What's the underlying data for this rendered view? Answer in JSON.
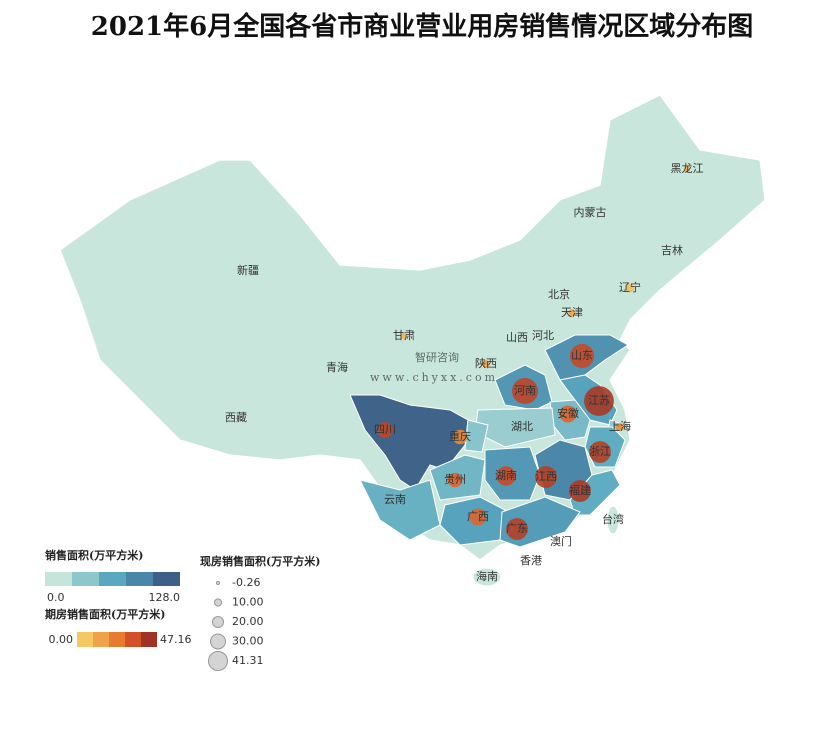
{
  "title": "2021年6月全国各省市商业营业用房销售情况区域分布图",
  "watermark": {
    "brand": "智研咨询",
    "url": "www.chyxx.com"
  },
  "regions": [
    {
      "label": "新疆"
    },
    {
      "label": "西藏"
    },
    {
      "label": "青海"
    },
    {
      "label": "甘肃",
      "current": 3,
      "forward": 6
    },
    {
      "label": "内蒙古"
    },
    {
      "label": "黑龙江",
      "current": 2,
      "forward": 5
    },
    {
      "label": "吉林"
    },
    {
      "label": "辽宁",
      "current": 6,
      "forward": 4
    },
    {
      "label": "北京"
    },
    {
      "label": "天津",
      "current": 4,
      "forward": 12
    },
    {
      "label": "河北"
    },
    {
      "label": "山西"
    },
    {
      "label": "陕西",
      "current": 4,
      "forward": 14
    },
    {
      "label": "山东",
      "area": 85,
      "current": 32,
      "forward": 38
    },
    {
      "label": "河南",
      "area": 80,
      "current": 35,
      "forward": 40
    },
    {
      "label": "江苏",
      "area": 70,
      "current": 41.31,
      "forward": 45
    },
    {
      "label": "安徽",
      "area": 45,
      "current": 20,
      "forward": 30
    },
    {
      "label": "上海",
      "area": 30,
      "current": 5,
      "forward": 20
    },
    {
      "label": "湖北",
      "area": 25
    },
    {
      "label": "四川",
      "area": 125,
      "current": 18,
      "forward": 40
    },
    {
      "label": "重庆",
      "area": 35,
      "current": 16,
      "forward": 20
    },
    {
      "label": "浙江",
      "area": 60,
      "current": 28,
      "forward": 42
    },
    {
      "label": "江西",
      "area": 95,
      "current": 28,
      "forward": 42
    },
    {
      "label": "湖南",
      "area": 78,
      "current": 24,
      "forward": 38
    },
    {
      "label": "贵州",
      "area": 50,
      "current": 16,
      "forward": 30
    },
    {
      "label": "福建",
      "area": 60,
      "current": 28,
      "forward": 44
    },
    {
      "label": "云南",
      "area": 55
    },
    {
      "label": "广西",
      "area": 70,
      "current": 20,
      "forward": 30
    },
    {
      "label": "广东",
      "area": 75,
      "current": 28,
      "forward": 42
    },
    {
      "label": "台湾"
    },
    {
      "label": "澳门"
    },
    {
      "label": "香港"
    },
    {
      "label": "海南"
    }
  ],
  "area_legend": {
    "title": "销售面积(万平方米)",
    "min": {
      "value": 0,
      "label": "0.0"
    },
    "max": {
      "value": 128,
      "label": "128.0"
    }
  },
  "forward_legend": {
    "title": "期房销售面积(万平方米)",
    "min": {
      "value": 0,
      "label": "0.00"
    },
    "max": 47.16
  },
  "size_legend": {
    "title": "现房销售面积(万平方米)",
    "ticks": [
      -0.26,
      {
        "value": 10,
        "label": "10.00"
      },
      {
        "value": 20,
        "label": "20.00"
      },
      {
        "value": 30,
        "label": "30.00"
      },
      41.31
    ]
  }
}
